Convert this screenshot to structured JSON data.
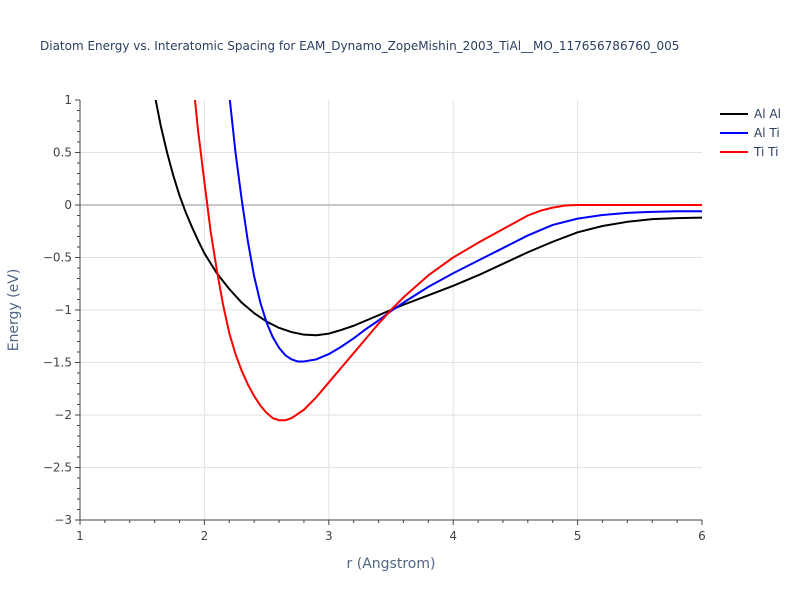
{
  "chart_data": {
    "type": "line",
    "title": "Diatom Energy vs. Interatomic Spacing for EAM_Dynamo_ZopeMishin_2003_TiAl__MO_117656786760_005",
    "xlabel": "r (Angstrom)",
    "ylabel": "Energy (eV)",
    "xlim": [
      1,
      6
    ],
    "ylim": [
      -3,
      1
    ],
    "xticks": [
      1,
      2,
      3,
      4,
      5,
      6
    ],
    "yticks": [
      -3,
      -2.5,
      -2,
      -1.5,
      -1,
      -0.5,
      0,
      0.5,
      1
    ],
    "ytick_labels": [
      "−3",
      "−2.5",
      "−2",
      "−1.5",
      "−1",
      "−0.5",
      "0",
      "0.5",
      "1"
    ],
    "grid": true,
    "legend_position": "top-right",
    "series": [
      {
        "name": "Al Al",
        "color": "#000000",
        "points": [
          [
            1.6,
            1.05
          ],
          [
            1.65,
            0.75
          ],
          [
            1.7,
            0.5
          ],
          [
            1.75,
            0.28
          ],
          [
            1.8,
            0.09
          ],
          [
            1.85,
            -0.07
          ],
          [
            1.9,
            -0.21
          ],
          [
            1.95,
            -0.34
          ],
          [
            2.0,
            -0.46
          ],
          [
            2.1,
            -0.65
          ],
          [
            2.2,
            -0.8
          ],
          [
            2.3,
            -0.93
          ],
          [
            2.4,
            -1.03
          ],
          [
            2.5,
            -1.11
          ],
          [
            2.6,
            -1.17
          ],
          [
            2.7,
            -1.21
          ],
          [
            2.8,
            -1.235
          ],
          [
            2.9,
            -1.24
          ],
          [
            3.0,
            -1.225
          ],
          [
            3.1,
            -1.19
          ],
          [
            3.2,
            -1.15
          ],
          [
            3.3,
            -1.1
          ],
          [
            3.4,
            -1.05
          ],
          [
            3.5,
            -1.0
          ],
          [
            3.6,
            -0.95
          ],
          [
            3.8,
            -0.86
          ],
          [
            4.0,
            -0.77
          ],
          [
            4.2,
            -0.67
          ],
          [
            4.4,
            -0.56
          ],
          [
            4.6,
            -0.45
          ],
          [
            4.8,
            -0.35
          ],
          [
            5.0,
            -0.26
          ],
          [
            5.2,
            -0.2
          ],
          [
            5.4,
            -0.16
          ],
          [
            5.6,
            -0.135
          ],
          [
            5.8,
            -0.125
          ],
          [
            6.0,
            -0.12
          ]
        ]
      },
      {
        "name": "Al Ti",
        "color": "#0000ff",
        "points": [
          [
            2.2,
            1.05
          ],
          [
            2.25,
            0.5
          ],
          [
            2.3,
            0.05
          ],
          [
            2.35,
            -0.35
          ],
          [
            2.4,
            -0.68
          ],
          [
            2.45,
            -0.93
          ],
          [
            2.5,
            -1.12
          ],
          [
            2.55,
            -1.26
          ],
          [
            2.6,
            -1.36
          ],
          [
            2.65,
            -1.43
          ],
          [
            2.7,
            -1.47
          ],
          [
            2.75,
            -1.49
          ],
          [
            2.8,
            -1.49
          ],
          [
            2.9,
            -1.47
          ],
          [
            3.0,
            -1.42
          ],
          [
            3.1,
            -1.35
          ],
          [
            3.2,
            -1.27
          ],
          [
            3.3,
            -1.18
          ],
          [
            3.4,
            -1.1
          ],
          [
            3.5,
            -1.01
          ],
          [
            3.6,
            -0.93
          ],
          [
            3.8,
            -0.78
          ],
          [
            4.0,
            -0.65
          ],
          [
            4.2,
            -0.53
          ],
          [
            4.4,
            -0.41
          ],
          [
            4.6,
            -0.29
          ],
          [
            4.8,
            -0.19
          ],
          [
            5.0,
            -0.13
          ],
          [
            5.2,
            -0.095
          ],
          [
            5.4,
            -0.075
          ],
          [
            5.6,
            -0.065
          ],
          [
            5.8,
            -0.06
          ],
          [
            6.0,
            -0.06
          ]
        ]
      },
      {
        "name": "Ti Ti",
        "color": "#ff0000",
        "points": [
          [
            1.92,
            1.05
          ],
          [
            1.95,
            0.7
          ],
          [
            2.0,
            0.22
          ],
          [
            2.05,
            -0.25
          ],
          [
            2.1,
            -0.62
          ],
          [
            2.15,
            -0.95
          ],
          [
            2.2,
            -1.22
          ],
          [
            2.25,
            -1.42
          ],
          [
            2.3,
            -1.58
          ],
          [
            2.35,
            -1.71
          ],
          [
            2.4,
            -1.82
          ],
          [
            2.45,
            -1.91
          ],
          [
            2.5,
            -1.98
          ],
          [
            2.55,
            -2.03
          ],
          [
            2.6,
            -2.05
          ],
          [
            2.65,
            -2.05
          ],
          [
            2.7,
            -2.03
          ],
          [
            2.8,
            -1.95
          ],
          [
            2.9,
            -1.83
          ],
          [
            3.0,
            -1.69
          ],
          [
            3.1,
            -1.55
          ],
          [
            3.2,
            -1.41
          ],
          [
            3.3,
            -1.27
          ],
          [
            3.4,
            -1.13
          ],
          [
            3.5,
            -1.0
          ],
          [
            3.6,
            -0.88
          ],
          [
            3.8,
            -0.67
          ],
          [
            4.0,
            -0.5
          ],
          [
            4.2,
            -0.36
          ],
          [
            4.4,
            -0.23
          ],
          [
            4.6,
            -0.1
          ],
          [
            4.7,
            -0.055
          ],
          [
            4.8,
            -0.025
          ],
          [
            4.9,
            -0.005
          ],
          [
            5.0,
            0.0
          ],
          [
            5.5,
            0.0
          ],
          [
            6.0,
            0.0
          ]
        ]
      }
    ]
  }
}
